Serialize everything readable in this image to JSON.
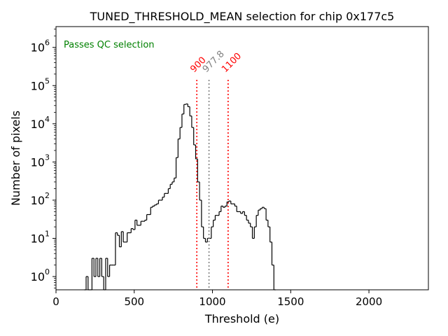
{
  "chart_data": {
    "type": "histogram",
    "title": "TUNED_THRESHOLD_MEAN selection for chip 0x177c5",
    "xlabel": "Threshold (e)",
    "ylabel": "Number of pixels",
    "xlim": [
      0,
      2380
    ],
    "ylim": [
      0.45,
      3500000
    ],
    "yscale": "log",
    "x_ticks": [
      {
        "value": 0,
        "label": "0"
      },
      {
        "value": 500,
        "label": "500"
      },
      {
        "value": 1000,
        "label": "1000"
      },
      {
        "value": 1500,
        "label": "1500"
      },
      {
        "value": 2000,
        "label": "2000"
      }
    ],
    "y_ticks": [
      {
        "value": 1,
        "base": "10",
        "exp": "0"
      },
      {
        "value": 10,
        "base": "10",
        "exp": "1"
      },
      {
        "value": 100,
        "base": "10",
        "exp": "2"
      },
      {
        "value": 1000,
        "base": "10",
        "exp": "3"
      },
      {
        "value": 10000,
        "base": "10",
        "exp": "4"
      },
      {
        "value": 100000,
        "base": "10",
        "exp": "5"
      },
      {
        "value": 1000000,
        "base": "10",
        "exp": "6"
      }
    ],
    "annotation": {
      "text": "Passes QC selection",
      "color": "#008000"
    },
    "vlines": [
      {
        "x": 900,
        "label": "900",
        "color": "#ff0000"
      },
      {
        "x": 977.8,
        "label": "977.8",
        "color": "#808080"
      },
      {
        "x": 1100,
        "label": "1100",
        "color": "#ff0000"
      }
    ],
    "histogram": {
      "bin_start": 180,
      "bin_width": 12.5,
      "color": "#000000",
      "counts": [
        0,
        1,
        0,
        0,
        3,
        1,
        3,
        1,
        3,
        1,
        0,
        3,
        1,
        2,
        2,
        2,
        14,
        12,
        6,
        15,
        8,
        8,
        14,
        14,
        18,
        17,
        30,
        22,
        22,
        28,
        28,
        30,
        42,
        42,
        65,
        70,
        75,
        80,
        100,
        100,
        120,
        150,
        150,
        200,
        260,
        300,
        380,
        1300,
        4000,
        8000,
        18000,
        32000,
        33000,
        28000,
        16000,
        8000,
        2800,
        1200,
        300,
        100,
        20,
        10,
        8,
        10,
        10,
        20,
        30,
        40,
        40,
        50,
        70,
        65,
        70,
        90,
        95,
        80,
        80,
        70,
        50,
        50,
        45,
        50,
        40,
        30,
        25,
        20,
        10,
        20,
        40,
        55,
        60,
        65,
        60,
        30,
        20,
        8,
        2,
        0
      ]
    }
  }
}
